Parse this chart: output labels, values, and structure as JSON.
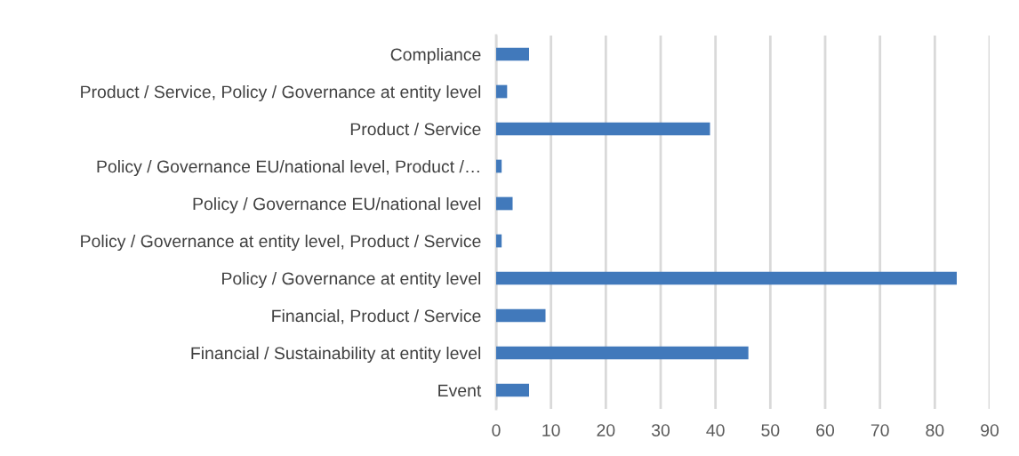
{
  "chart_data": {
    "type": "bar",
    "orientation": "horizontal",
    "categories": [
      "Compliance",
      "Product / Service, Policy / Governance at entity level",
      "Product / Service",
      "Policy / Governance EU/national level, Product /…",
      "Policy / Governance EU/national level",
      "Policy / Governance at entity level, Product / Service",
      "Policy / Governance at entity level",
      "Financial, Product / Service",
      "Financial / Sustainability at entity level",
      "Event"
    ],
    "values": [
      6,
      2,
      39,
      1,
      3,
      1,
      84,
      9,
      46,
      6
    ],
    "color": "#4179bb",
    "xlim": [
      0,
      90
    ],
    "xticks": [
      0,
      10,
      20,
      30,
      40,
      50,
      60,
      70,
      80,
      90
    ],
    "grid": "x",
    "legend": false
  }
}
